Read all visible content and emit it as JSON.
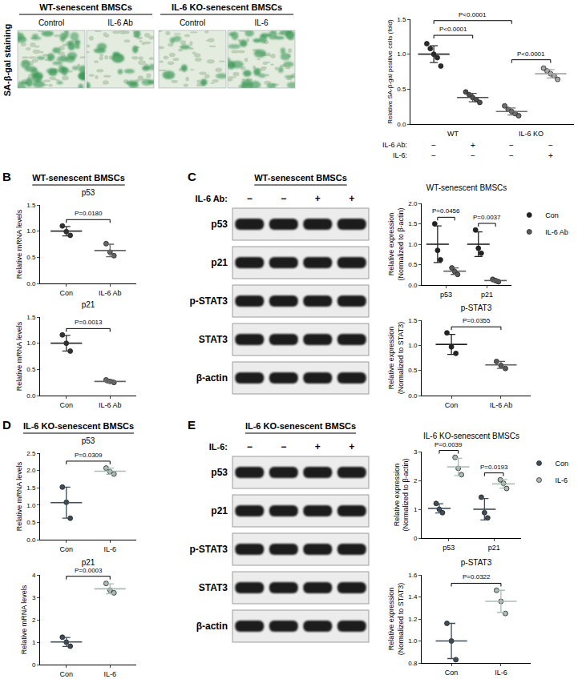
{
  "figure": {
    "panel_a": {
      "side_label": "SA-β-gal staining",
      "groups": [
        {
          "title": "WT-senescent BMSCs",
          "images": [
            "Control",
            "IL-6 Ab"
          ]
        },
        {
          "title": "IL-6 KO-senescent BMSCs",
          "images": [
            "Control",
            "IL-6"
          ]
        }
      ]
    },
    "panel_b": {
      "letter": "B",
      "title": "WT-senescent BMSCs"
    },
    "panel_c": {
      "letter": "C",
      "blot": {
        "title": "WT-senescent BMSCs",
        "treatment": "IL-6 Ab:",
        "lanes": [
          "−",
          "−",
          "+",
          "+"
        ],
        "rows": [
          "p53",
          "p21",
          "p-STAT3",
          "STAT3",
          "β-actin"
        ]
      }
    },
    "panel_d": {
      "letter": "D",
      "title": "IL-6 KO-senescent BMSCs"
    },
    "panel_e": {
      "letter": "E",
      "blot": {
        "title": "IL-6 KO-senescent BMSCs",
        "treatment": "IL-6:",
        "lanes": [
          "−",
          "−",
          "+",
          "+"
        ],
        "rows": [
          "p53",
          "p21",
          "p-STAT3",
          "STAT3",
          "β-actin"
        ]
      }
    }
  },
  "chart_data": [
    {
      "type": "scatter",
      "y_label": "Relative SA-β-gal positive cells (fold)",
      "categories": [
        null,
        null,
        null,
        null
      ],
      "values": [
        [
          1.15,
          1.08,
          1.0,
          0.95,
          0.83
        ],
        [
          0.46,
          0.42,
          0.38,
          0.35,
          0.31
        ],
        [
          0.26,
          0.21,
          0.18,
          0.15,
          0.12
        ],
        [
          0.8,
          0.76,
          0.72,
          0.69,
          0.64
        ]
      ],
      "means": [
        1.0,
        0.38,
        0.18,
        0.72
      ],
      "sds": [
        0.12,
        0.06,
        0.05,
        0.06
      ],
      "colors": [
        "#2b2b2b",
        "#4d4d4d",
        "#6e6e6e",
        "#a6a6a6"
      ],
      "marker": "circle",
      "ylim": [
        0,
        1.5
      ],
      "yticks": [
        {
          "value": 0,
          "label": "0.0"
        },
        0.5,
        {
          "value": 1,
          "label": "1.0"
        },
        1.5
      ],
      "grid": false,
      "comparisons": [
        {
          "from": 0,
          "to": 1,
          "text": "P<0.0001"
        },
        {
          "from": 0,
          "to": 2,
          "text": "P<0.0001"
        },
        {
          "from": 2,
          "to": 3,
          "text": "P<0.0001"
        }
      ],
      "table": {
        "groups": [
          {
            "label": "WT",
            "span": [
              0,
              1
            ]
          },
          {
            "label": "IL-6 KO",
            "span": [
              2,
              3
            ]
          }
        ],
        "rows": [
          {
            "label": "IL-6 Ab:",
            "signs": [
              "−",
              "+",
              "−",
              "−"
            ]
          },
          {
            "label": "IL-6:",
            "signs": [
              "−",
              "−",
              "−",
              "+"
            ]
          }
        ]
      }
    },
    {
      "type": "scatter",
      "title": "p53",
      "y_label": "Relative mRNA levels",
      "categories": [
        "Con",
        "IL-6 Ab"
      ],
      "values": [
        [
          1.1,
          0.99,
          0.92
        ],
        [
          0.76,
          0.6,
          0.53
        ]
      ],
      "means": [
        1.0,
        0.63
      ],
      "sds": [
        0.09,
        0.12
      ],
      "colors": [
        "#333333",
        "#666666"
      ],
      "marker": "circle",
      "ylim": [
        0,
        1.5
      ],
      "yticks": [
        {
          "value": 0,
          "label": "0.0"
        },
        0.5,
        {
          "value": 1,
          "label": "1.0"
        },
        1.5
      ],
      "grid": false,
      "comparisons": [
        {
          "from": 0,
          "to": 1,
          "text": "P=0.0180"
        }
      ]
    },
    {
      "type": "scatter",
      "title": "p21",
      "y_label": "Relative mRNA levels",
      "categories": [
        "Con",
        "IL-6 Ab"
      ],
      "values": [
        [
          1.16,
          1.0,
          0.85
        ],
        [
          0.3,
          0.27,
          0.25
        ]
      ],
      "means": [
        1.0,
        0.27
      ],
      "sds": [
        0.15,
        0.03
      ],
      "colors": [
        "#333333",
        "#666666"
      ],
      "marker": "circle",
      "ylim": [
        0,
        1.5
      ],
      "yticks": [
        {
          "value": 0,
          "label": "0.0"
        },
        0.5,
        {
          "value": 1,
          "label": "1.0"
        },
        1.5
      ],
      "grid": false,
      "comparisons": [
        {
          "from": 0,
          "to": 1,
          "text": "P=0.0013"
        }
      ]
    },
    {
      "type": "scatter",
      "title": "WT-senescent BMSCs",
      "y_label": "Relative expression\n(Normalized to β-actin)",
      "categories": [
        "p53",
        "p21"
      ],
      "series": [
        {
          "name": "Con",
          "color": "#222222",
          "values": [
            [
              1.5,
              0.85,
              0.62
            ],
            [
              1.35,
              0.9,
              0.78
            ]
          ],
          "means": [
            1.0,
            1.0
          ],
          "sds": [
            0.45,
            0.3
          ]
        },
        {
          "name": "IL-6 Ab",
          "color": "#5a5a5a",
          "values": [
            [
              0.42,
              0.33,
              0.26
            ],
            [
              0.14,
              0.11,
              0.08
            ]
          ],
          "means": [
            0.34,
            0.11
          ],
          "sds": [
            0.08,
            0.03
          ]
        }
      ],
      "marker": "circle",
      "legend": "top right",
      "ylim": [
        0,
        2
      ],
      "yticks": [
        {
          "value": 0,
          "label": "0.0"
        },
        0.5,
        {
          "value": 1,
          "label": "1.0"
        },
        1.5,
        {
          "value": 2,
          "label": "2.0"
        }
      ],
      "grid": false,
      "comparisons": [
        {
          "category": 0,
          "text": "P=0.0456"
        },
        {
          "category": 1,
          "text": "P=0.0037"
        }
      ]
    },
    {
      "type": "scatter",
      "title": "p-STAT3",
      "y_label": "Relative expression\n(Normalized to STAT3)",
      "categories": [
        "Con",
        "IL-6 Ab"
      ],
      "values": [
        [
          1.25,
          0.97,
          0.84
        ],
        [
          0.68,
          0.6,
          0.54
        ]
      ],
      "means": [
        1.02,
        0.61
      ],
      "sds": [
        0.2,
        0.07
      ],
      "colors": [
        "#222222",
        "#5a5a5a"
      ],
      "marker": "circle",
      "ylim": [
        0,
        1.5
      ],
      "yticks": [
        {
          "value": 0,
          "label": "0.0"
        },
        0.5,
        {
          "value": 1,
          "label": "1.0"
        },
        1.5
      ],
      "grid": false,
      "comparisons": [
        {
          "from": 0,
          "to": 1,
          "text": "P=0.0355"
        }
      ]
    },
    {
      "type": "scatter",
      "title": "p53",
      "y_label": "Relative mRNA levels",
      "categories": [
        "Con",
        "IL-6"
      ],
      "values": [
        [
          1.52,
          1.08,
          0.62
        ],
        [
          2.07,
          1.96,
          1.9
        ]
      ],
      "means": [
        1.07,
        1.98
      ],
      "sds": [
        0.45,
        0.09
      ],
      "colors": [
        "#3e4d57",
        "#a9bcb4"
      ],
      "marker": "circle",
      "ylim": [
        0,
        2.5
      ],
      "yticks": [
        {
          "value": 0,
          "label": "0.0"
        },
        0.5,
        {
          "value": 1,
          "label": "1.0"
        },
        1.5,
        {
          "value": 2,
          "label": "2.0"
        },
        2.5
      ],
      "grid": false,
      "comparisons": [
        {
          "from": 0,
          "to": 1,
          "text": "P=0.0309"
        }
      ]
    },
    {
      "type": "scatter",
      "title": "p21",
      "y_label": "Relative mRNA levels",
      "categories": [
        "Con",
        "IL-6"
      ],
      "values": [
        [
          1.22,
          1.0,
          0.82
        ],
        [
          3.62,
          3.32,
          3.2
        ]
      ],
      "means": [
        1.01,
        3.38
      ],
      "sds": [
        0.2,
        0.22
      ],
      "colors": [
        "#3e4d57",
        "#a9bcb4"
      ],
      "marker": "circle",
      "ylim": [
        0,
        4
      ],
      "yticks": [
        0,
        1,
        2,
        3,
        4
      ],
      "grid": false,
      "comparisons": [
        {
          "from": 0,
          "to": 1,
          "text": "P=0.0003"
        }
      ]
    },
    {
      "type": "scatter",
      "title": "IL-6 KO-senescent BMSCs",
      "y_label": "Relative expression\n(Normalized to β-actin)",
      "categories": [
        "p53",
        "p21"
      ],
      "series": [
        {
          "name": "Con",
          "color": "#3e4d57",
          "values": [
            [
              1.2,
              1.0,
              0.88
            ],
            [
              1.42,
              0.88,
              0.7
            ]
          ],
          "means": [
            1.03,
            1.0
          ],
          "sds": [
            0.16,
            0.37
          ]
        },
        {
          "name": "IL-6",
          "color": "#a9bcb4",
          "values": [
            [
              2.8,
              2.42,
              2.2
            ],
            [
              2.02,
              1.9,
              1.72
            ]
          ],
          "means": [
            2.47,
            1.88
          ],
          "sds": [
            0.3,
            0.15
          ]
        }
      ],
      "marker": "circle",
      "legend": "top right",
      "ylim": [
        0,
        3
      ],
      "yticks": [
        0,
        1,
        2,
        3
      ],
      "grid": false,
      "comparisons": [
        {
          "category": 0,
          "text": "P=0.0039"
        },
        {
          "category": 1,
          "text": "P=0.0193"
        }
      ]
    },
    {
      "type": "scatter",
      "title": "p-STAT3",
      "y_label": "Relative expression\n(Normalized to STAT3)",
      "categories": [
        "Con",
        "IL-6"
      ],
      "values": [
        [
          1.16,
          1.0,
          0.83
        ],
        [
          1.46,
          1.36,
          1.25
        ]
      ],
      "means": [
        1.0,
        1.36
      ],
      "sds": [
        0.16,
        0.1
      ],
      "colors": [
        "#3e4d57",
        "#a9bcb4"
      ],
      "marker": "circle",
      "ylim": [
        0.8,
        1.6
      ],
      "yticks": [
        0.8,
        {
          "value": 1,
          "label": "1.0"
        },
        1.2,
        1.4,
        1.6
      ],
      "grid": false,
      "comparisons": [
        {
          "from": 0,
          "to": 1,
          "text": "P=0.0322"
        }
      ]
    }
  ]
}
